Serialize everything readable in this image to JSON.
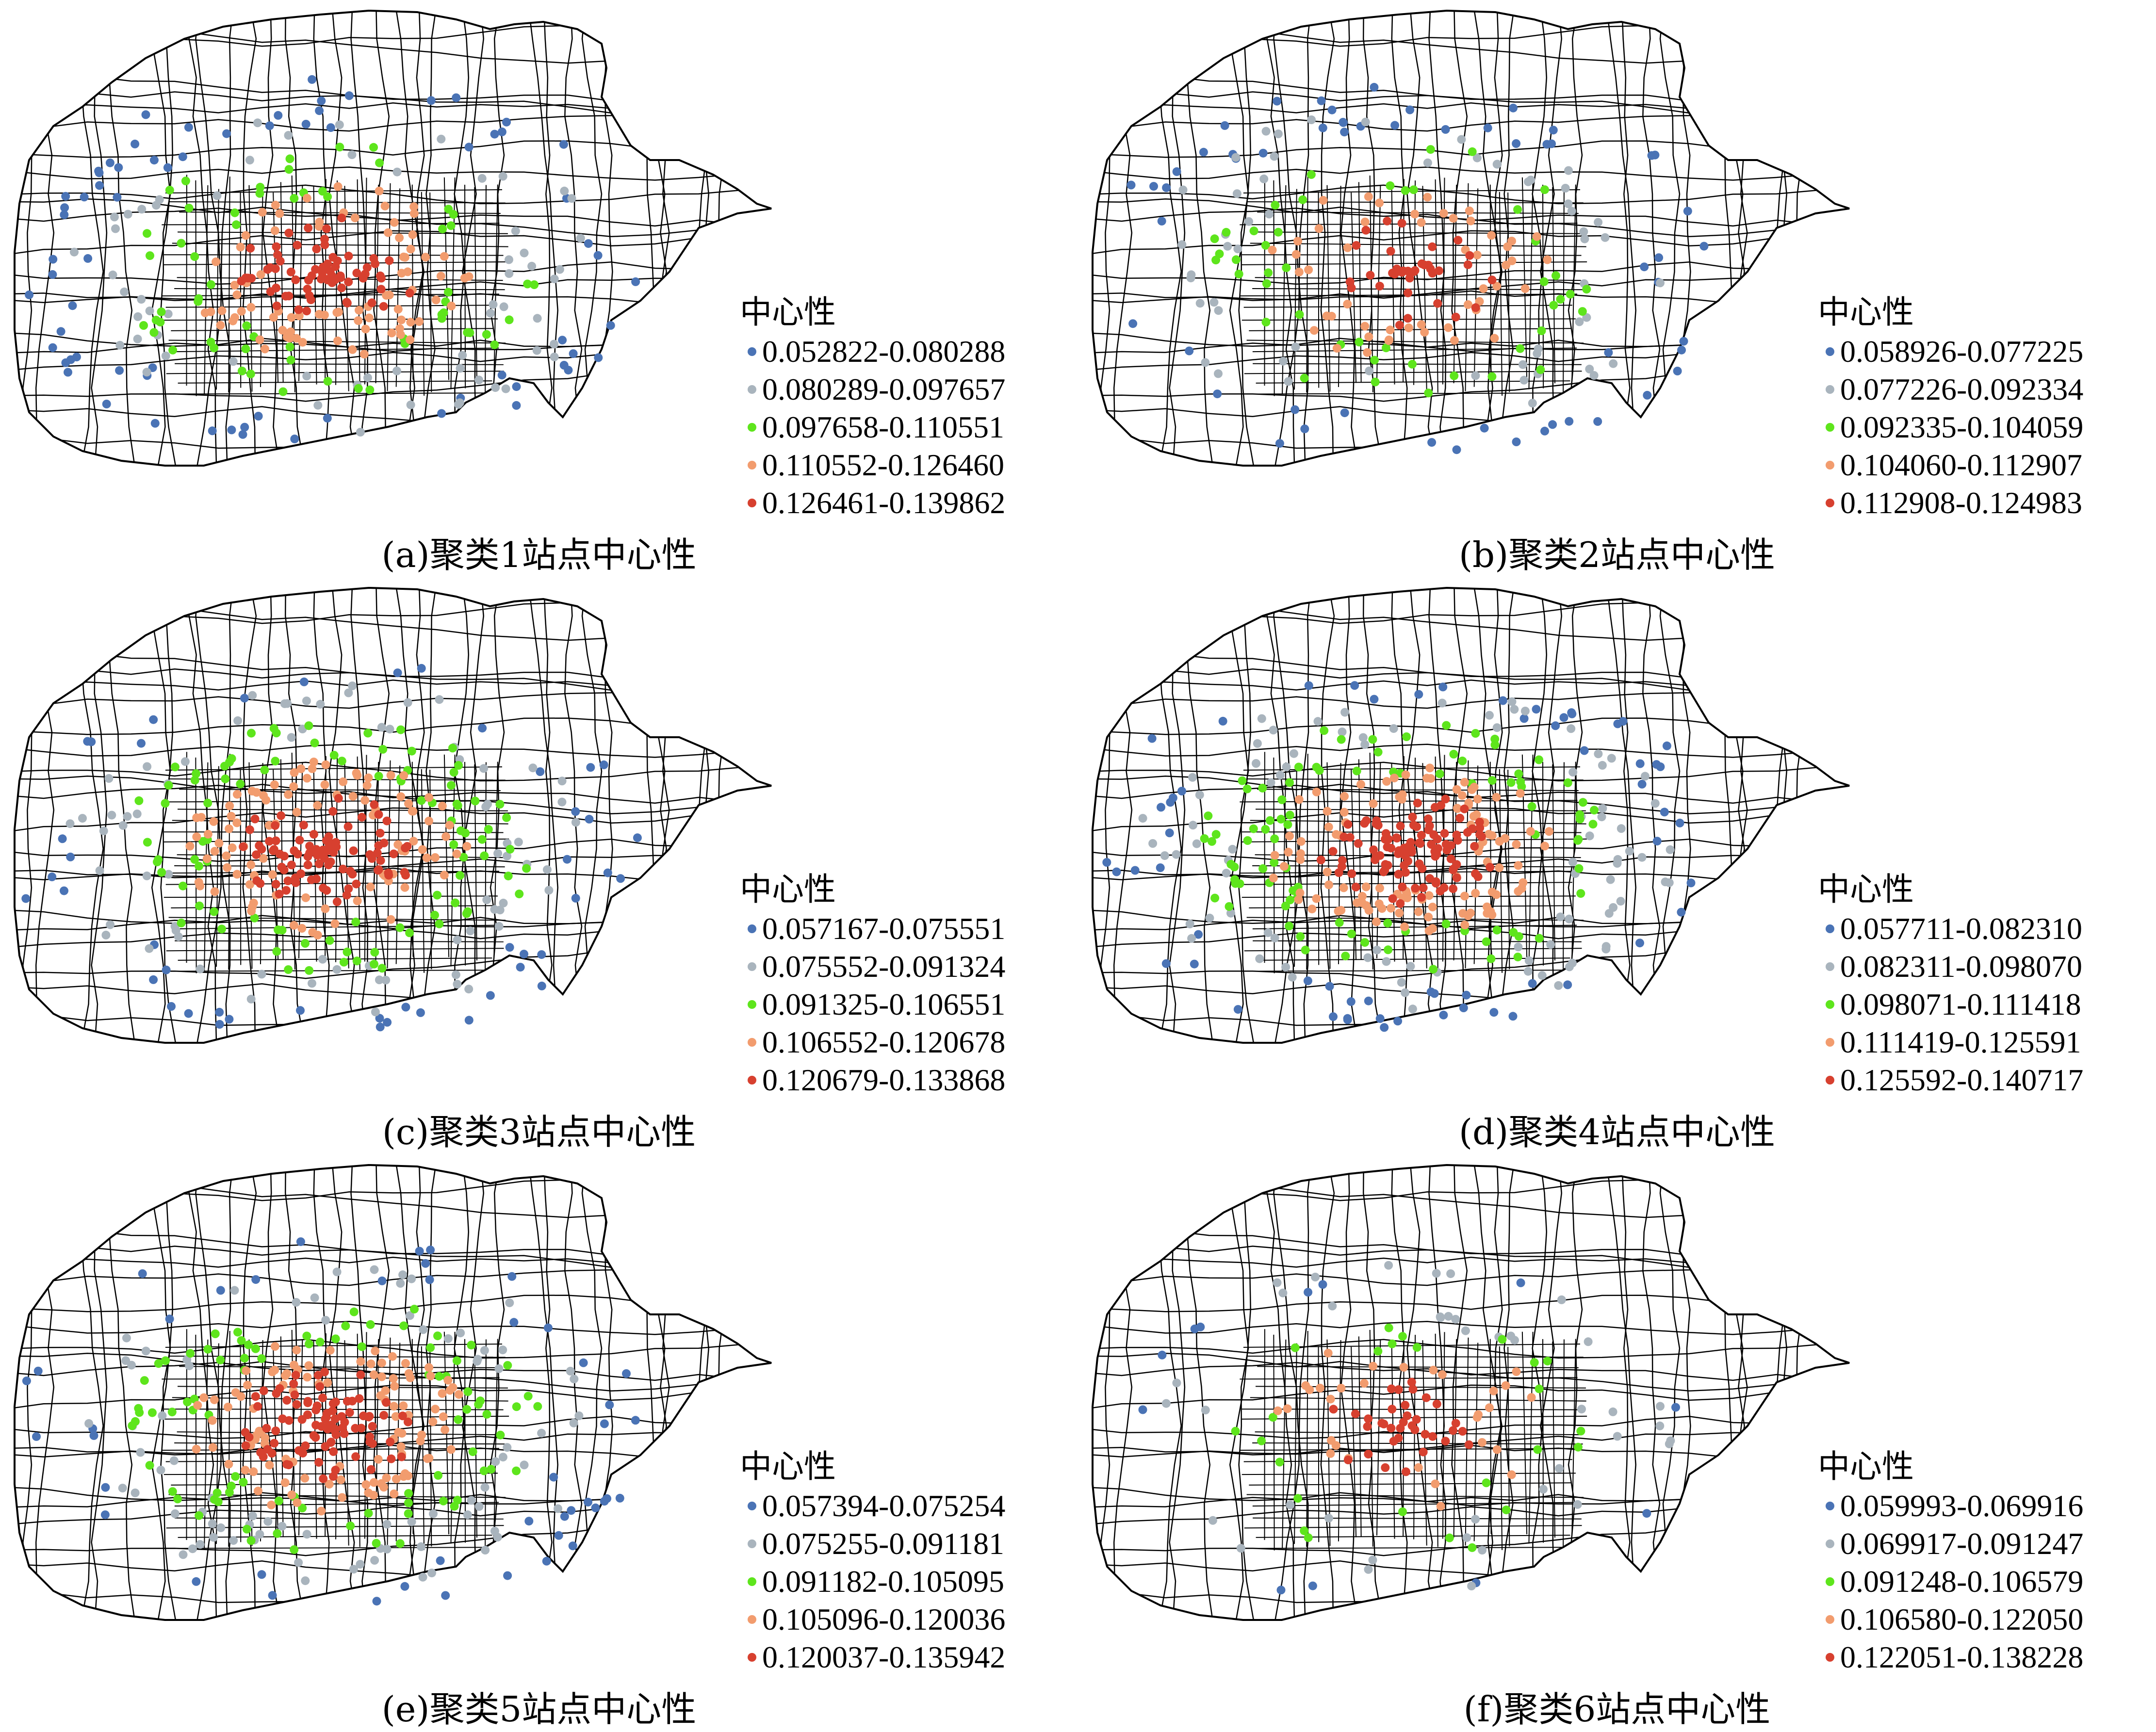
{
  "legend_title": "中心性",
  "colors": [
    "#4a73b5",
    "#a9b4bd",
    "#5ee51c",
    "#f29c6e",
    "#d7402f"
  ],
  "panels": [
    {
      "caption": "(a)聚类1站点中心性",
      "legend": [
        "0.052822-0.080288",
        "0.080289-0.097657",
        "0.097658-0.110551",
        "0.110552-0.126460",
        "0.126461-0.139862"
      ]
    },
    {
      "caption": "(b)聚类2站点中心性",
      "legend": [
        "0.058926-0.077225",
        "0.077226-0.092334",
        "0.092335-0.104059",
        "0.104060-0.112907",
        "0.112908-0.124983"
      ]
    },
    {
      "caption": "(c)聚类3站点中心性",
      "legend": [
        "0.057167-0.075551",
        "0.075552-0.091324",
        "0.091325-0.106551",
        "0.106552-0.120678",
        "0.120679-0.133868"
      ]
    },
    {
      "caption": "(d)聚类4站点中心性",
      "legend": [
        "0.057711-0.082310",
        "0.082311-0.098070",
        "0.098071-0.111418",
        "0.111419-0.125591",
        "0.125592-0.140717"
      ]
    },
    {
      "caption": "(e)聚类5站点中心性",
      "legend": [
        "0.057394-0.075254",
        "0.075255-0.091181",
        "0.091182-0.105095",
        "0.105096-0.120036",
        "0.120037-0.135942"
      ]
    },
    {
      "caption": "(f)聚类6站点中心性",
      "legend": [
        "0.059993-0.069916",
        "0.069917-0.091247",
        "0.091248-0.106579",
        "0.106580-0.122050",
        "0.122051-0.138228"
      ]
    }
  ]
}
